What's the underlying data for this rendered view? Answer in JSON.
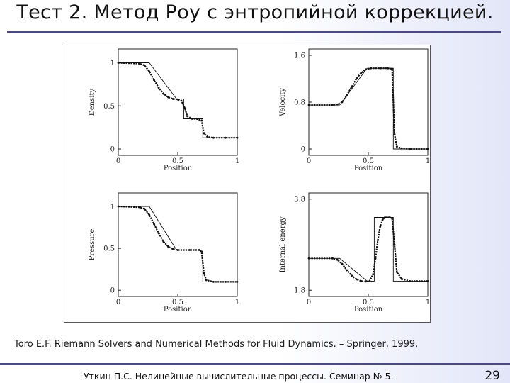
{
  "slide": {
    "title": "Тест 2. Метод Роу с энтропийной коррекцией.",
    "citation": "Toro E.F. Riemann Solvers and Numerical Methods for Fluid Dynamics. – Springer, 1999.",
    "footer": "Уткин П.С. Нелинейные вычислительные процессы. Семинар № 5.",
    "page_number": "29"
  },
  "colors": {
    "rule": "#4a4a80",
    "plot": "#111111"
  },
  "chart_data": [
    {
      "type": "line",
      "xlabel": "Position",
      "ylabel": "Density",
      "xlim": [
        0,
        1
      ],
      "ylim": [
        0,
        1
      ],
      "xticks": [
        "0",
        "0.5",
        "1"
      ],
      "yticks": [
        "0",
        "0.5",
        "1"
      ],
      "series": [
        {
          "kind": "exact",
          "x": [
            0,
            0.26,
            0.49,
            0.55,
            0.55,
            0.71,
            0.71,
            1
          ],
          "y": [
            1,
            1,
            0.58,
            0.58,
            0.35,
            0.35,
            0.13,
            0.13
          ]
        },
        {
          "kind": "numerical",
          "x": [
            0,
            0.18,
            0.22,
            0.26,
            0.3,
            0.34,
            0.38,
            0.42,
            0.46,
            0.5,
            0.53,
            0.56,
            0.58,
            0.62,
            0.66,
            0.7,
            0.72,
            0.75,
            0.8,
            0.9,
            1
          ],
          "y": [
            1,
            0.99,
            0.97,
            0.9,
            0.8,
            0.71,
            0.64,
            0.6,
            0.58,
            0.575,
            0.56,
            0.47,
            0.38,
            0.35,
            0.35,
            0.33,
            0.18,
            0.14,
            0.13,
            0.13,
            0.13
          ]
        }
      ]
    },
    {
      "type": "line",
      "xlabel": "Position",
      "ylabel": "Velocity",
      "xlim": [
        0,
        1
      ],
      "ylim": [
        0,
        1.6
      ],
      "xticks": [
        "0",
        "0.5",
        "1"
      ],
      "yticks": [
        "0",
        "0.8",
        "1.6"
      ],
      "series": [
        {
          "kind": "exact",
          "x": [
            0,
            0.26,
            0.49,
            0.71,
            0.71,
            1
          ],
          "y": [
            0.75,
            0.75,
            1.38,
            1.38,
            0,
            0
          ]
        },
        {
          "kind": "numerical",
          "x": [
            0,
            0.2,
            0.24,
            0.28,
            0.32,
            0.36,
            0.4,
            0.44,
            0.48,
            0.52,
            0.6,
            0.66,
            0.7,
            0.72,
            0.74,
            0.78,
            0.85,
            1
          ],
          "y": [
            0.75,
            0.75,
            0.76,
            0.8,
            0.92,
            1.06,
            1.2,
            1.3,
            1.36,
            1.38,
            1.38,
            1.38,
            1.37,
            0.25,
            0.04,
            0.01,
            0,
            0
          ]
        }
      ]
    },
    {
      "type": "line",
      "xlabel": "Position",
      "ylabel": "Pressure",
      "xlim": [
        0,
        1
      ],
      "ylim": [
        0,
        1
      ],
      "xticks": [
        "0",
        "0.5",
        "1"
      ],
      "yticks": [
        "0",
        "0.5",
        "1"
      ],
      "series": [
        {
          "kind": "exact",
          "x": [
            0,
            0.26,
            0.49,
            0.71,
            0.71,
            1
          ],
          "y": [
            1,
            1,
            0.48,
            0.48,
            0.1,
            0.1
          ]
        },
        {
          "kind": "numerical",
          "x": [
            0,
            0.18,
            0.22,
            0.26,
            0.3,
            0.34,
            0.38,
            0.42,
            0.46,
            0.5,
            0.6,
            0.68,
            0.7,
            0.72,
            0.74,
            0.8,
            0.9,
            1
          ],
          "y": [
            1,
            0.99,
            0.97,
            0.9,
            0.79,
            0.68,
            0.58,
            0.52,
            0.49,
            0.48,
            0.48,
            0.48,
            0.46,
            0.2,
            0.12,
            0.1,
            0.1,
            0.1
          ]
        }
      ]
    },
    {
      "type": "line",
      "xlabel": "Position",
      "ylabel": "Internal energy",
      "xlim": [
        0,
        1
      ],
      "ylim": [
        1.8,
        3.8
      ],
      "xticks": [
        "0",
        "0.5",
        "1"
      ],
      "yticks": [
        "1.8",
        "3.8"
      ],
      "series": [
        {
          "kind": "exact",
          "x": [
            0,
            0.26,
            0.49,
            0.55,
            0.55,
            0.71,
            0.71,
            1
          ],
          "y": [
            2.5,
            2.5,
            2.0,
            2.0,
            3.4,
            3.4,
            2.0,
            2.0
          ]
        },
        {
          "kind": "numerical",
          "x": [
            0,
            0.2,
            0.24,
            0.28,
            0.32,
            0.36,
            0.4,
            0.44,
            0.48,
            0.51,
            0.54,
            0.56,
            0.58,
            0.6,
            0.62,
            0.64,
            0.68,
            0.7,
            0.72,
            0.74,
            0.78,
            0.85,
            1
          ],
          "y": [
            2.5,
            2.5,
            2.47,
            2.38,
            2.24,
            2.12,
            2.04,
            2.0,
            1.99,
            2.0,
            2.15,
            2.5,
            2.9,
            3.2,
            3.35,
            3.4,
            3.4,
            3.38,
            2.8,
            2.2,
            2.05,
            2.0,
            2.0
          ]
        }
      ]
    }
  ]
}
